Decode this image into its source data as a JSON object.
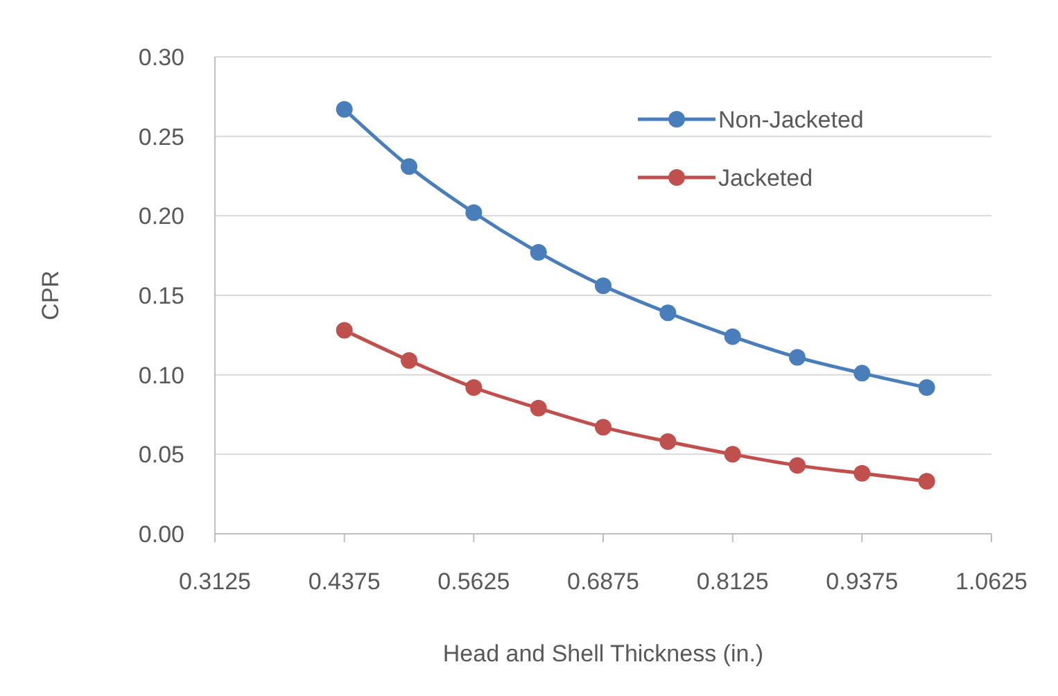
{
  "chart_data": {
    "type": "line",
    "xlabel": "Head and Shell Thickness (in.)",
    "ylabel": "CPR",
    "x": [
      0.4375,
      0.5,
      0.5625,
      0.625,
      0.6875,
      0.75,
      0.8125,
      0.875,
      0.9375,
      1.0
    ],
    "series": [
      {
        "name": "Non-Jacketed",
        "color": "#4a7ebb",
        "values": [
          0.267,
          0.231,
          0.202,
          0.177,
          0.156,
          0.139,
          0.124,
          0.111,
          0.101,
          0.092
        ]
      },
      {
        "name": "Jacketed",
        "color": "#c0504d",
        "values": [
          0.128,
          0.109,
          0.092,
          0.079,
          0.067,
          0.058,
          0.05,
          0.043,
          0.038,
          0.033
        ]
      }
    ],
    "xlim": [
      0.3125,
      1.0625
    ],
    "xticks": [
      0.3125,
      0.4375,
      0.5625,
      0.6875,
      0.8125,
      0.9375,
      1.0625
    ],
    "ylim": [
      0,
      0.3
    ],
    "yticks": [
      {
        "value": 0,
        "label": "0.00"
      },
      {
        "value": 0.05,
        "label": "0.05"
      },
      {
        "value": 0.1,
        "label": "0.10"
      },
      {
        "value": 0.15,
        "label": "0.15"
      },
      {
        "value": 0.2,
        "label": "0.20"
      },
      {
        "value": 0.25,
        "label": "0.25"
      },
      {
        "value": 0.3,
        "label": "0.30"
      }
    ],
    "grid": "y",
    "legend": "top right",
    "marker": "circle",
    "line_style": "solid"
  }
}
